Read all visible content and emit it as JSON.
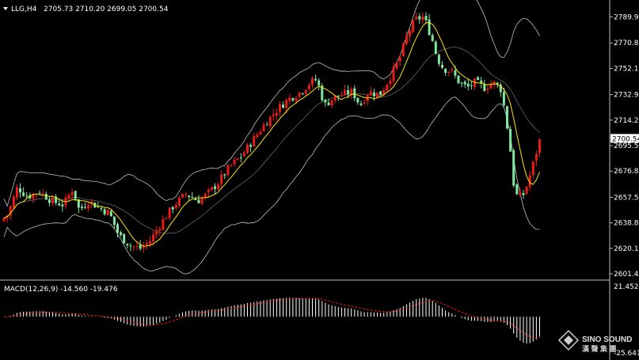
{
  "header": {
    "symbol": "LLG,H4",
    "ohlc": "2705.73 2710.20 2699.05 2700.54"
  },
  "chart_data": [
    {
      "type": "candlestick",
      "yaxis_ticks": [
        "2789.95",
        "2770.85",
        "2752.15",
        "2732.90",
        "2714.20",
        "2695.50",
        "2676.80",
        "2657.55",
        "2638.85",
        "2620.15",
        "2601.45"
      ],
      "ylim": [
        2598.0,
        2800.0
      ],
      "current_price_label": "2700.54",
      "current_price": 2700.54,
      "colors": {
        "bull": "#e81d18",
        "bear": "#7fe8a2",
        "ma": "#ffe400",
        "bb": "#c0c0c0",
        "signal": "#e81d18",
        "hist": "#ffffff"
      }
    },
    {
      "type": "bar",
      "title": "MACD(12,26,9) -14.560 -19.476",
      "yaxis_ticks": [
        "21.452",
        "-25.641"
      ],
      "ylim": [
        -25.641,
        21.452
      ]
    }
  ],
  "watermark": {
    "en": "SINO SOUND",
    "zh": "漢 聲 集 團"
  }
}
